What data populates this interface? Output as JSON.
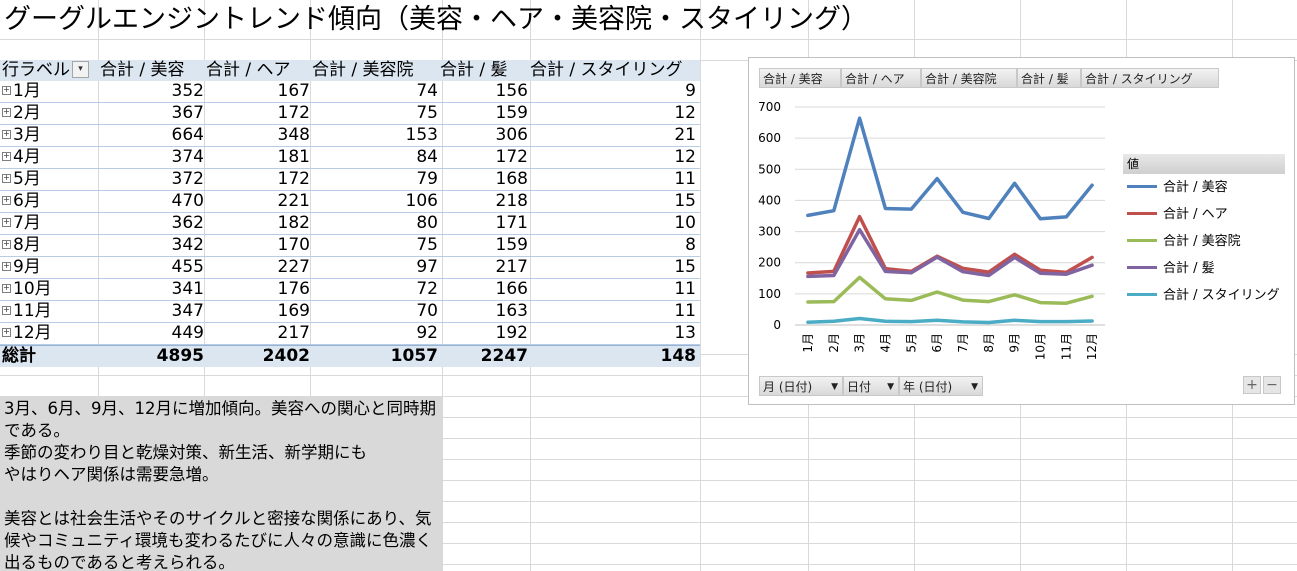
{
  "title": "グーグルエンジントレンド傾向（美容・ヘア・美容院・スタイリング）",
  "pivot": {
    "headers": [
      "行ラベル",
      "合計 / 美容",
      "合計 / ヘア",
      "合計 / 美容院",
      "合計 / 髪",
      "合計 / スタイリング"
    ],
    "rows": [
      [
        "1月",
        "352",
        "167",
        "74",
        "156",
        "9"
      ],
      [
        "2月",
        "367",
        "172",
        "75",
        "159",
        "12"
      ],
      [
        "3月",
        "664",
        "348",
        "153",
        "306",
        "21"
      ],
      [
        "4月",
        "374",
        "181",
        "84",
        "172",
        "12"
      ],
      [
        "5月",
        "372",
        "172",
        "79",
        "168",
        "11"
      ],
      [
        "6月",
        "470",
        "221",
        "106",
        "218",
        "15"
      ],
      [
        "7月",
        "362",
        "182",
        "80",
        "171",
        "10"
      ],
      [
        "8月",
        "342",
        "170",
        "75",
        "159",
        "8"
      ],
      [
        "9月",
        "455",
        "227",
        "97",
        "217",
        "15"
      ],
      [
        "10月",
        "341",
        "176",
        "72",
        "166",
        "11"
      ],
      [
        "11月",
        "347",
        "169",
        "70",
        "163",
        "11"
      ],
      [
        "12月",
        "449",
        "217",
        "92",
        "192",
        "13"
      ]
    ],
    "total": [
      "総計",
      "4895",
      "2402",
      "1057",
      "2247",
      "148"
    ]
  },
  "note": "3月、6月、9月、12月に増加傾向。美容への関心と同時期である。\n季節の変わり目と乾燥対策、新生活、新学期にも\nやはりヘア関係は需要急増。\n\n美容とは社会生活やそのサイクルと密接な関係にあり、気候やコミュニティ環境も変わるたびに人々の意識に色濃く出るものであると考えられる。",
  "chart": {
    "value_buttons": [
      "合計 / 美容",
      "合計 / ヘア",
      "合計 / 美容院",
      "合計 / 髪",
      "合計 / スタイリング"
    ],
    "axis_buttons": [
      "月 (日付)",
      "日付",
      "年 (日付)"
    ],
    "legend_title": "値",
    "zoom_in": "+",
    "zoom_out": "−"
  },
  "chart_data": {
    "type": "line",
    "x": [
      "1月",
      "2月",
      "3月",
      "4月",
      "5月",
      "6月",
      "7月",
      "8月",
      "9月",
      "10月",
      "11月",
      "12月"
    ],
    "ylim": [
      0,
      700
    ],
    "yticks": [
      0,
      100,
      200,
      300,
      400,
      500,
      600,
      700
    ],
    "grid": true,
    "legend": "right",
    "series": [
      {
        "name": "合計 / 美容",
        "color": "#4f81bd",
        "values": [
          352,
          367,
          664,
          374,
          372,
          470,
          362,
          342,
          455,
          341,
          347,
          449
        ]
      },
      {
        "name": "合計 / ヘア",
        "color": "#c0504d",
        "values": [
          167,
          172,
          348,
          181,
          172,
          221,
          182,
          170,
          227,
          176,
          169,
          217
        ]
      },
      {
        "name": "合計 / 美容院",
        "color": "#9bbb59",
        "values": [
          74,
          75,
          153,
          84,
          79,
          106,
          80,
          75,
          97,
          72,
          70,
          92
        ]
      },
      {
        "name": "合計 / 髪",
        "color": "#8064a2",
        "values": [
          156,
          159,
          306,
          172,
          168,
          218,
          171,
          159,
          217,
          166,
          163,
          192
        ]
      },
      {
        "name": "合計 / スタイリング",
        "color": "#4bacc6",
        "values": [
          9,
          12,
          21,
          12,
          11,
          15,
          10,
          8,
          15,
          11,
          11,
          13
        ]
      }
    ]
  }
}
